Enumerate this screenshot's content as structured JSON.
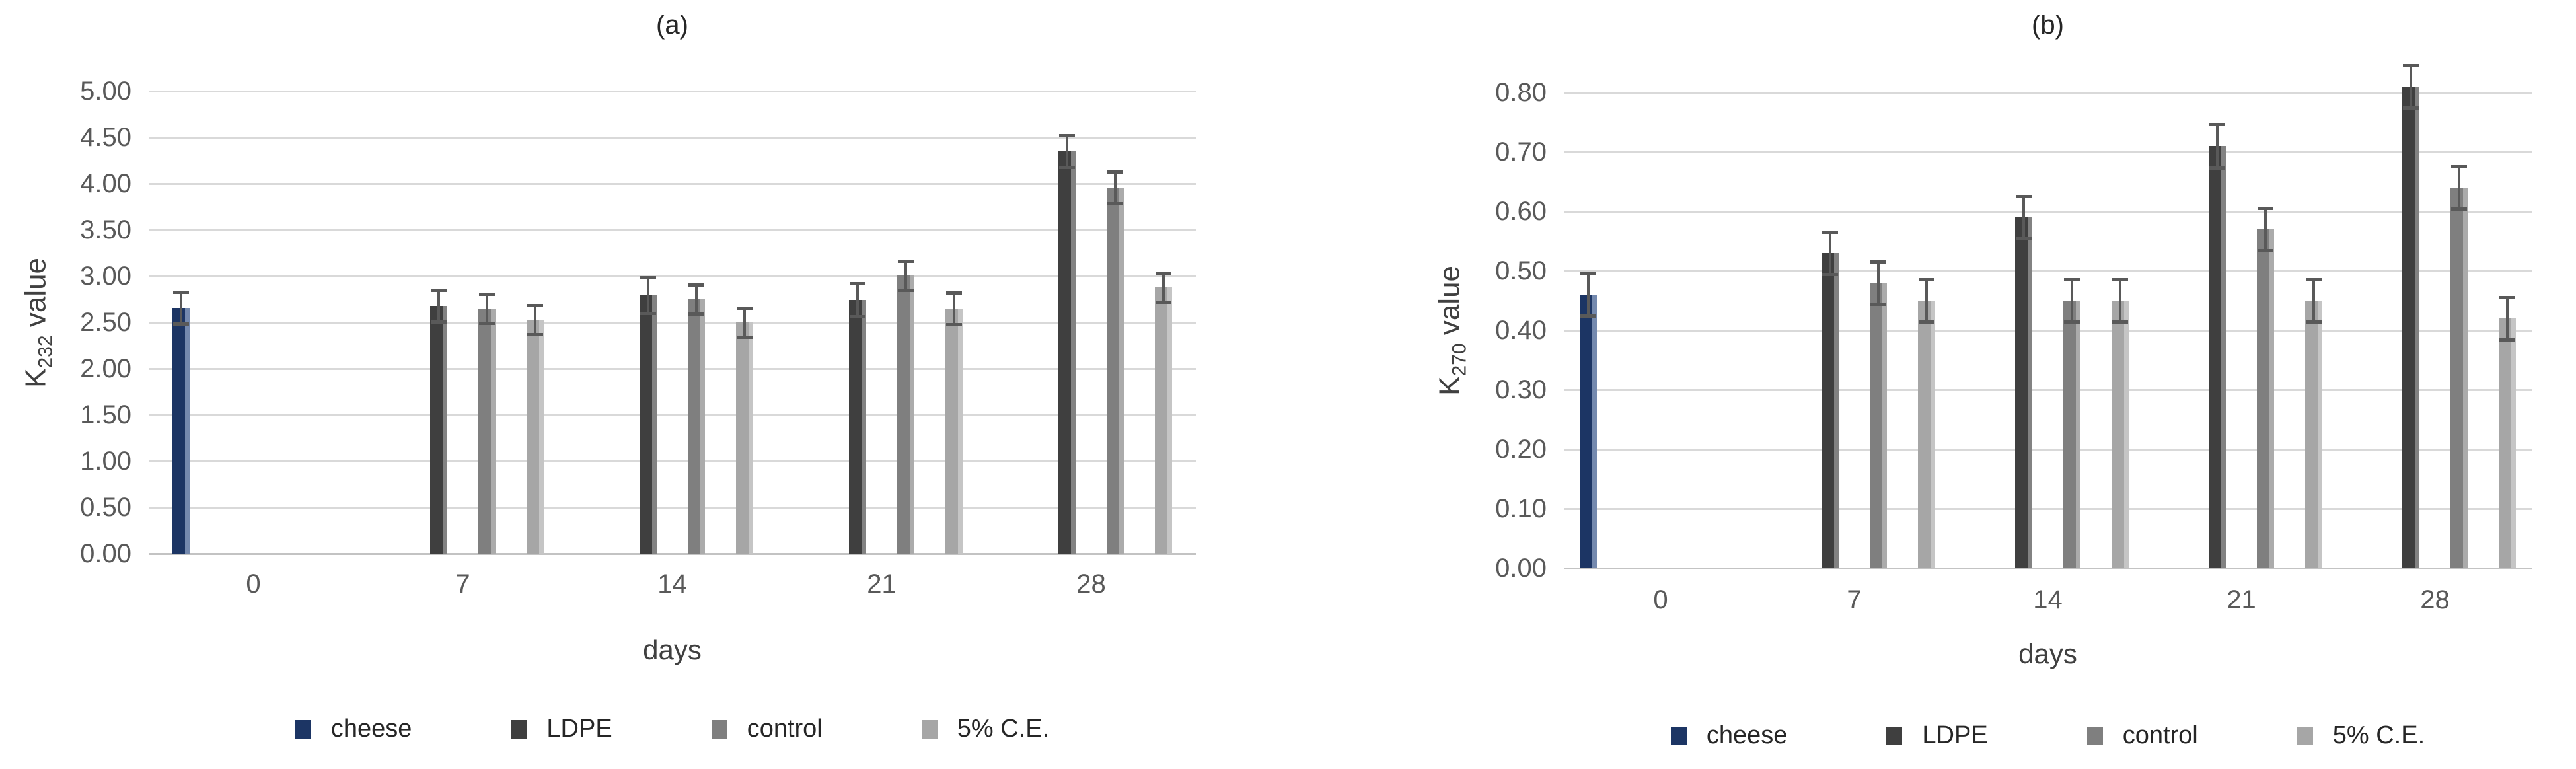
{
  "page": {
    "background": "#ffffff"
  },
  "colors": {
    "cheese": "#1C3564",
    "ldpe": "#3F3F3F",
    "control": "#7F7F7F",
    "ce5": "#A6A6A6",
    "gridline": "#D9D9D9",
    "error_bar": "#595959",
    "tick_text": "#595959",
    "axis_text": "#404040"
  },
  "chart_data": [
    {
      "id": "a",
      "type": "bar",
      "title": "(a)",
      "ylabel": {
        "prefix": "K",
        "sub": "232",
        "suffix": " value"
      },
      "xlabel": "days",
      "ylim": [
        0,
        5.0
      ],
      "ytick_step": 0.5,
      "grid": true,
      "legend_position": "bottom",
      "yticks": [
        "5.00",
        "4.50",
        "4.00",
        "3.50",
        "3.00",
        "2.50",
        "2.00",
        "1.50",
        "1.00",
        "0.50",
        "0.00"
      ],
      "categories": [
        "0",
        "7",
        "14",
        "21",
        "28"
      ],
      "series": [
        {
          "name": "cheese",
          "color": "#1C3564",
          "values": [
            2.66,
            null,
            null,
            null,
            null
          ],
          "errors": [
            0.17,
            null,
            null,
            null,
            null
          ]
        },
        {
          "name": "LDPE",
          "color": "#3F3F3F",
          "values": [
            null,
            2.68,
            2.79,
            2.74,
            4.35
          ],
          "errors": [
            null,
            0.17,
            0.19,
            0.18,
            0.17
          ]
        },
        {
          "name": "control",
          "color": "#7F7F7F",
          "values": [
            null,
            2.65,
            2.75,
            3.01,
            3.96
          ],
          "errors": [
            null,
            0.16,
            0.16,
            0.16,
            0.17
          ]
        },
        {
          "name": "5% C.E.",
          "color": "#A6A6A6",
          "values": [
            null,
            2.53,
            2.5,
            2.65,
            2.88
          ],
          "errors": [
            null,
            0.16,
            0.16,
            0.17,
            0.16
          ]
        }
      ]
    },
    {
      "id": "b",
      "type": "bar",
      "title": "(b)",
      "ylabel": {
        "prefix": "K",
        "sub": "270",
        "suffix": " value"
      },
      "xlabel": "days",
      "ylim": [
        0,
        0.8
      ],
      "ytick_step": 0.1,
      "grid": true,
      "legend_position": "bottom",
      "yticks": [
        "0.80",
        "0.70",
        "0.60",
        "0.50",
        "0.40",
        "0.30",
        "0.20",
        "0.10",
        "0.00"
      ],
      "categories": [
        "0",
        "7",
        "14",
        "21",
        "28"
      ],
      "series": [
        {
          "name": "cheese",
          "color": "#1C3564",
          "values": [
            0.46,
            null,
            null,
            null,
            null
          ],
          "errors": [
            0.035,
            null,
            null,
            null,
            null
          ]
        },
        {
          "name": "LDPE",
          "color": "#3F3F3F",
          "values": [
            null,
            0.53,
            0.59,
            0.71,
            0.81
          ],
          "errors": [
            null,
            0.035,
            0.035,
            0.037,
            0.036
          ]
        },
        {
          "name": "control",
          "color": "#7F7F7F",
          "values": [
            null,
            0.48,
            0.45,
            0.57,
            0.64
          ],
          "errors": [
            null,
            0.035,
            0.035,
            0.035,
            0.036
          ]
        },
        {
          "name": "5% C.E.",
          "color": "#A6A6A6",
          "values": [
            null,
            0.45,
            0.45,
            0.45,
            0.42
          ],
          "errors": [
            null,
            0.035,
            0.035,
            0.035,
            0.036
          ]
        }
      ]
    }
  ]
}
